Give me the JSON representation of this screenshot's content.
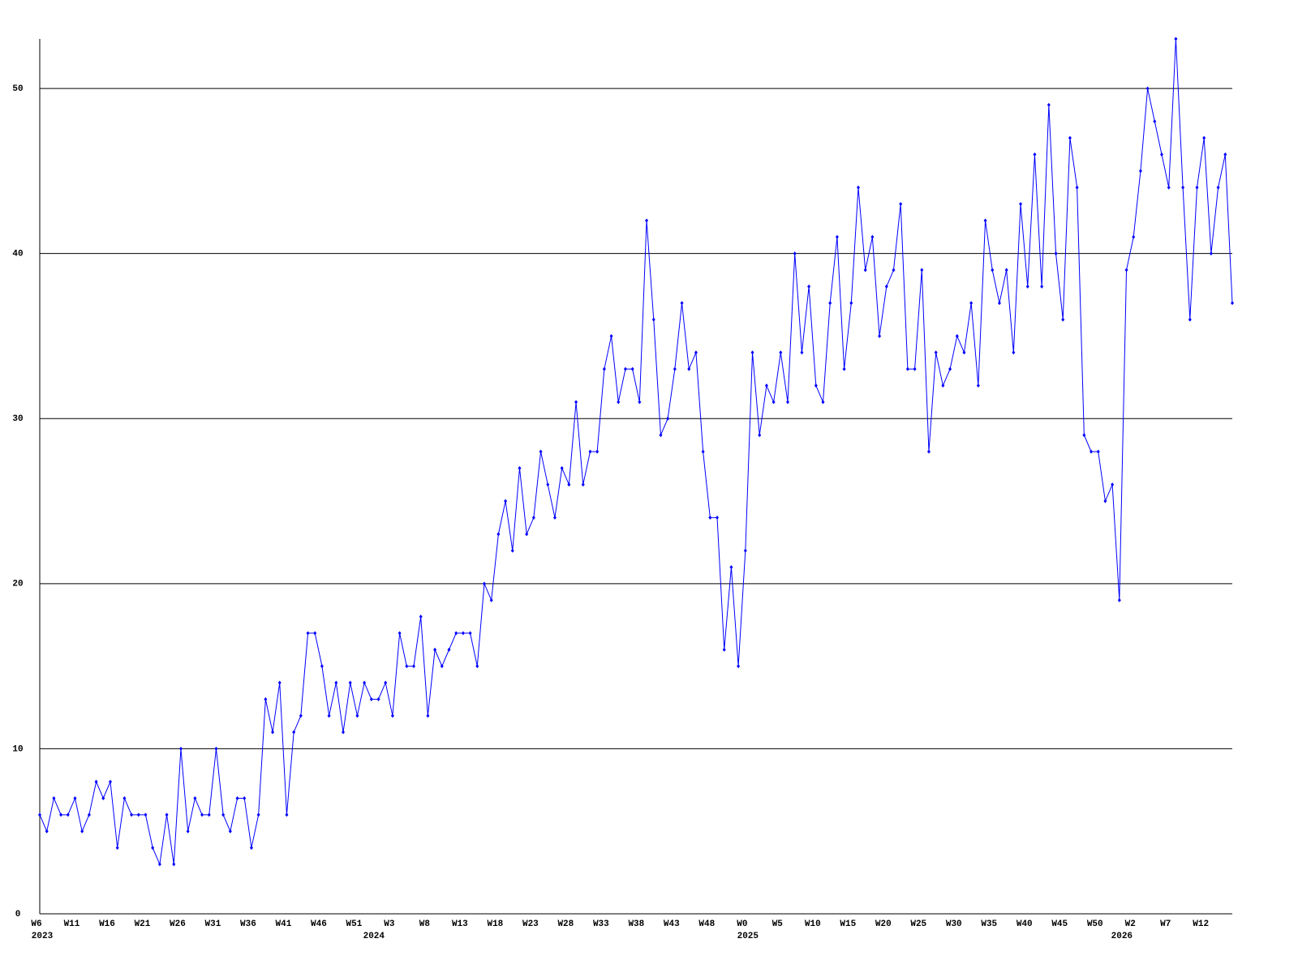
{
  "chart_data": {
    "type": "line",
    "color": "#0000ff",
    "grid": true,
    "ylim": [
      0,
      53
    ],
    "yticks": [
      0,
      10,
      20,
      30,
      40,
      50
    ],
    "categories": [
      "W6",
      null,
      null,
      null,
      null,
      "W11",
      null,
      null,
      null,
      null,
      "W16",
      null,
      null,
      null,
      null,
      "W21",
      null,
      null,
      null,
      null,
      "W26",
      null,
      null,
      null,
      null,
      "W31",
      null,
      null,
      null,
      null,
      "W36",
      null,
      null,
      null,
      null,
      "W41",
      null,
      null,
      null,
      null,
      "W46",
      null,
      null,
      null,
      null,
      "W51",
      null,
      null,
      null,
      null,
      "W3",
      null,
      null,
      null,
      null,
      "W8",
      null,
      null,
      null,
      null,
      "W13",
      null,
      null,
      null,
      null,
      "W18",
      null,
      null,
      null,
      null,
      "W23",
      null,
      null,
      null,
      null,
      "W28",
      null,
      null,
      null,
      null,
      "W33",
      null,
      null,
      null,
      null,
      "W38",
      null,
      null,
      null,
      null,
      "W43",
      null,
      null,
      null,
      null,
      "W48",
      null,
      null,
      null,
      null,
      "W0",
      null,
      null,
      null,
      null,
      "W5",
      null,
      null,
      null,
      null,
      "W10",
      null,
      null,
      null,
      null,
      "W15",
      null,
      null,
      null,
      null,
      "W20",
      null,
      null,
      null,
      null,
      "W25",
      null,
      null,
      null,
      null,
      "W30",
      null,
      null,
      null,
      null,
      "W35",
      null,
      null,
      null,
      null,
      "W40",
      null,
      null,
      null,
      null,
      "W45",
      null,
      null,
      null,
      null,
      "W50",
      null,
      null,
      null,
      null,
      "W2",
      null,
      null,
      null,
      null,
      "W7",
      null,
      null,
      null,
      null,
      "W12",
      null,
      null,
      null,
      null
    ],
    "year_labels": [
      "2023",
      null,
      null,
      null,
      null,
      null,
      null,
      null,
      null,
      null,
      null,
      null,
      null,
      null,
      null,
      null,
      null,
      null,
      null,
      null,
      null,
      null,
      null,
      null,
      null,
      null,
      null,
      null,
      null,
      null,
      null,
      null,
      null,
      null,
      null,
      null,
      null,
      null,
      null,
      null,
      null,
      null,
      null,
      null,
      null,
      null,
      null,
      "2024",
      null,
      null,
      null,
      null,
      null,
      null,
      null,
      null,
      null,
      null,
      null,
      null,
      null,
      null,
      null,
      null,
      null,
      null,
      null,
      null,
      null,
      null,
      null,
      null,
      null,
      null,
      null,
      null,
      null,
      null,
      null,
      null,
      null,
      null,
      null,
      null,
      null,
      null,
      null,
      null,
      null,
      null,
      null,
      null,
      null,
      null,
      null,
      null,
      null,
      null,
      null,
      null,
      "2025",
      null,
      null,
      null,
      null,
      null,
      null,
      null,
      null,
      null,
      null,
      null,
      null,
      null,
      null,
      null,
      null,
      null,
      null,
      null,
      null,
      null,
      null,
      null,
      null,
      null,
      null,
      null,
      null,
      null,
      null,
      null,
      null,
      null,
      null,
      null,
      null,
      null,
      null,
      null,
      null,
      null,
      null,
      null,
      null,
      null,
      null,
      null,
      null,
      null,
      null,
      null,
      null,
      "2026",
      null,
      null,
      null,
      null,
      null,
      null,
      null,
      null,
      null,
      null,
      null,
      null,
      null,
      null,
      null,
      null
    ],
    "values": [
      6,
      5,
      7,
      6,
      6,
      7,
      5,
      6,
      8,
      7,
      8,
      4,
      7,
      6,
      6,
      6,
      4,
      3,
      6,
      3,
      10,
      5,
      7,
      6,
      6,
      10,
      6,
      5,
      7,
      7,
      4,
      6,
      13,
      11,
      14,
      6,
      11,
      12,
      17,
      17,
      15,
      12,
      14,
      11,
      14,
      12,
      14,
      13,
      13,
      14,
      12,
      17,
      15,
      15,
      18,
      12,
      16,
      15,
      16,
      17,
      17,
      17,
      15,
      20,
      19,
      23,
      25,
      22,
      27,
      23,
      24,
      28,
      26,
      24,
      27,
      26,
      31,
      26,
      28,
      28,
      33,
      35,
      31,
      33,
      33,
      31,
      42,
      36,
      29,
      30,
      33,
      37,
      33,
      34,
      28,
      24,
      24,
      16,
      21,
      15,
      22,
      34,
      29,
      32,
      31,
      34,
      31,
      40,
      34,
      38,
      32,
      31,
      37,
      41,
      33,
      37,
      44,
      39,
      41,
      35,
      38,
      39,
      43,
      33,
      33,
      39,
      28,
      34,
      32,
      33,
      35,
      34,
      37,
      32,
      42,
      39,
      37,
      39,
      34,
      43,
      38,
      46,
      38,
      49,
      40,
      36,
      47,
      44,
      29,
      28,
      28,
      25,
      26,
      19,
      39,
      41,
      45,
      50,
      48,
      46,
      44,
      53,
      44,
      36,
      44,
      47,
      40,
      44,
      46,
      37
    ]
  }
}
